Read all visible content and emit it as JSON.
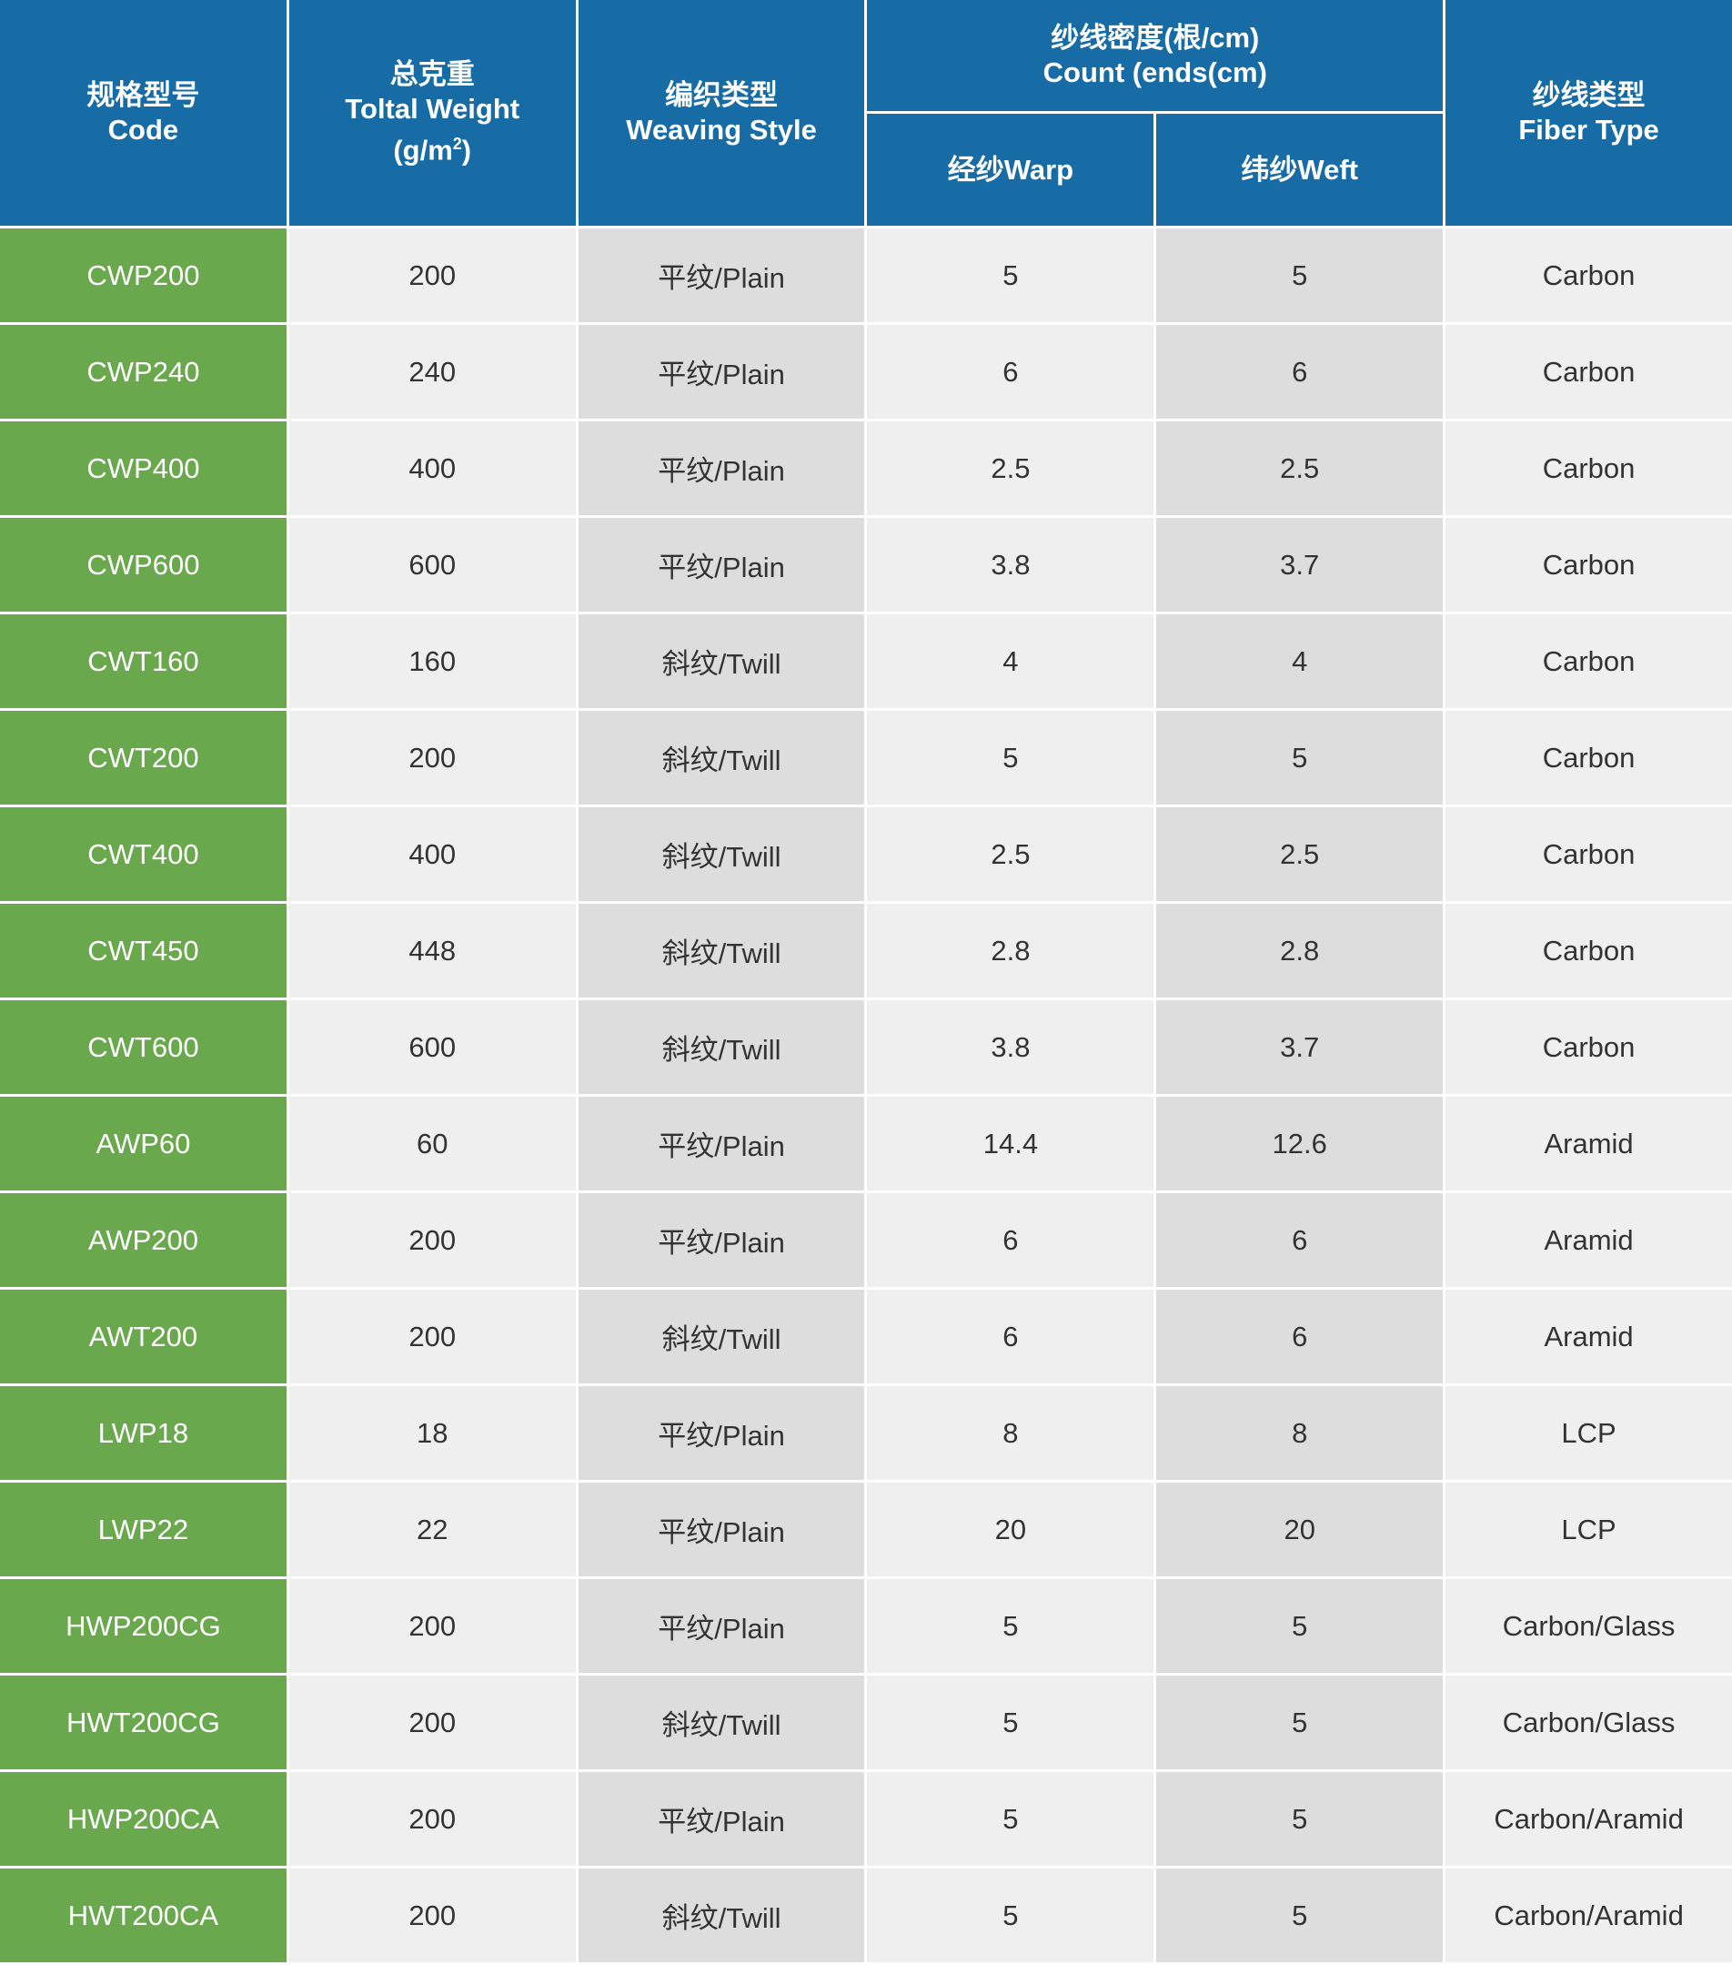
{
  "colors": {
    "header": "#176ca6",
    "code_column": "#6aa84d",
    "light_cell": "#efefef",
    "dark_cell": "#dcdddc"
  },
  "headers": {
    "code": {
      "zh": "规格型号",
      "en": "Code"
    },
    "weight": {
      "zh": "总克重",
      "en": "Toltal Weight",
      "unit": "(g/m",
      "unit_sup": "2",
      "unit_end": ")"
    },
    "weave": {
      "zh": "编织类型",
      "en": "Weaving Style"
    },
    "count": {
      "zh": "纱线密度(根/cm)",
      "en": "Count (ends(cm)",
      "warp": "经纱Warp",
      "weft": "纬纱Weft"
    },
    "fiber": {
      "zh": "纱线类型",
      "en": "Fiber Type"
    }
  },
  "rows": [
    [
      "CWP200",
      "200",
      "平纹/Plain",
      "5",
      "5",
      "Carbon"
    ],
    [
      "CWP240",
      "240",
      "平纹/Plain",
      "6",
      "6",
      "Carbon"
    ],
    [
      "CWP400",
      "400",
      "平纹/Plain",
      "2.5",
      "2.5",
      "Carbon"
    ],
    [
      "CWP600",
      "600",
      "平纹/Plain",
      "3.8",
      "3.7",
      "Carbon"
    ],
    [
      "CWT160",
      "160",
      "斜纹/Twill",
      "4",
      "4",
      "Carbon"
    ],
    [
      "CWT200",
      "200",
      "斜纹/Twill",
      "5",
      "5",
      "Carbon"
    ],
    [
      "CWT400",
      "400",
      "斜纹/Twill",
      "2.5",
      "2.5",
      "Carbon"
    ],
    [
      "CWT450",
      "448",
      "斜纹/Twill",
      "2.8",
      "2.8",
      "Carbon"
    ],
    [
      "CWT600",
      "600",
      "斜纹/Twill",
      "3.8",
      "3.7",
      "Carbon"
    ],
    [
      "AWP60",
      "60",
      "平纹/Plain",
      "14.4",
      "12.6",
      "Aramid"
    ],
    [
      "AWP200",
      "200",
      "平纹/Plain",
      "6",
      "6",
      "Aramid"
    ],
    [
      "AWT200",
      "200",
      "斜纹/Twill",
      "6",
      "6",
      "Aramid"
    ],
    [
      "LWP18",
      "18",
      "平纹/Plain",
      "8",
      "8",
      "LCP"
    ],
    [
      "LWP22",
      "22",
      "平纹/Plain",
      "20",
      "20",
      "LCP"
    ],
    [
      "HWP200CG",
      "200",
      "平纹/Plain",
      "5",
      "5",
      "Carbon/Glass"
    ],
    [
      "HWT200CG",
      "200",
      "斜纹/Twill",
      "5",
      "5",
      "Carbon/Glass"
    ],
    [
      "HWP200CA",
      "200",
      "平纹/Plain",
      "5",
      "5",
      "Carbon/Aramid"
    ],
    [
      "HWT200CA",
      "200",
      "斜纹/Twill",
      "5",
      "5",
      "Carbon/Aramid"
    ]
  ]
}
